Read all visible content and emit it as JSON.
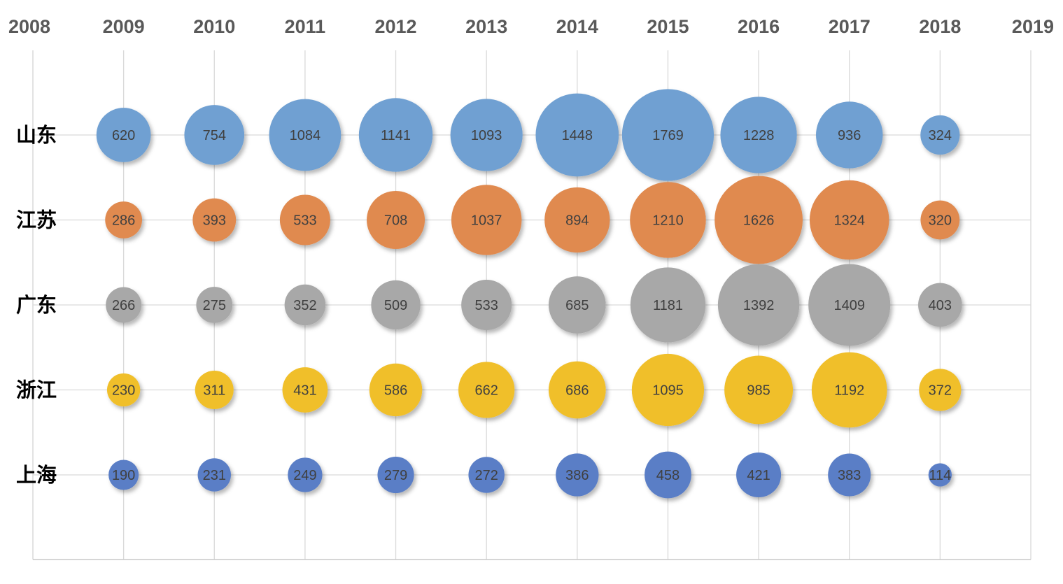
{
  "chart_data": {
    "type": "bubble",
    "x_ticks": [
      "2008",
      "2009",
      "2010",
      "2011",
      "2012",
      "2013",
      "2014",
      "2015",
      "2016",
      "2017",
      "2018",
      "2019"
    ],
    "xlim": [
      2008,
      2019
    ],
    "x": [
      2009,
      2010,
      2011,
      2012,
      2013,
      2014,
      2015,
      2016,
      2017,
      2018
    ],
    "y_categories": [
      "山东",
      "江苏",
      "广东",
      "浙江",
      "上海"
    ],
    "grid": true,
    "legend": "none",
    "series": [
      {
        "category": "山东",
        "color": "#6fa0d2",
        "values": [
          620,
          754,
          1084,
          1141,
          1093,
          1448,
          1769,
          1228,
          936,
          324
        ]
      },
      {
        "category": "江苏",
        "color": "#e08a50",
        "values": [
          286,
          393,
          533,
          708,
          1037,
          894,
          1210,
          1626,
          1324,
          320
        ]
      },
      {
        "category": "广东",
        "color": "#a8a8a8",
        "values": [
          266,
          275,
          352,
          509,
          533,
          685,
          1181,
          1392,
          1409,
          403
        ]
      },
      {
        "category": "浙江",
        "color": "#f0bf2a",
        "values": [
          230,
          311,
          431,
          586,
          662,
          686,
          1095,
          985,
          1192,
          372
        ]
      },
      {
        "category": "上海",
        "color": "#5a7ec6",
        "values": [
          190,
          231,
          249,
          279,
          272,
          386,
          458,
          421,
          383,
          114
        ]
      }
    ]
  }
}
